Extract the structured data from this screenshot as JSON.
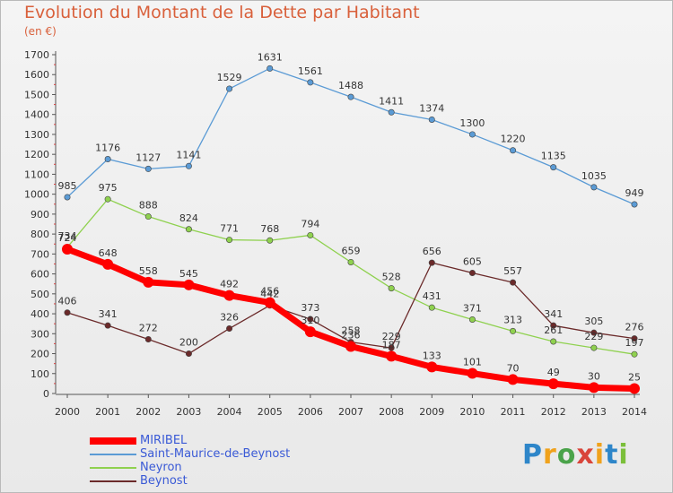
{
  "header": {
    "title": "Evolution du Montant de la Dette par Habitant",
    "unit": "(en €)"
  },
  "chart_data": {
    "type": "line",
    "title": "Evolution du Montant de la Dette par Habitant",
    "ylabel": "(en €)",
    "xlabel": "",
    "x": [
      "2000",
      "2001",
      "2002",
      "2003",
      "2004",
      "2005",
      "2006",
      "2007",
      "2008",
      "2009",
      "2010",
      "2011",
      "2012",
      "2013",
      "2014"
    ],
    "ylim": [
      0,
      1700
    ],
    "yticks": [
      0,
      100,
      200,
      300,
      400,
      500,
      600,
      700,
      800,
      900,
      1000,
      1100,
      1200,
      1300,
      1400,
      1500,
      1600,
      1700
    ],
    "grid": false,
    "legend_position": "bottom-left",
    "series": [
      {
        "name": "MIRIBEL",
        "color": "#ff0000",
        "values": [
          724,
          648,
          558,
          545,
          492,
          456,
          310,
          236,
          187,
          133,
          101,
          70,
          49,
          30,
          25
        ]
      },
      {
        "name": "Saint-Maurice-de-Beynost",
        "color": "#5b9bd5",
        "values": [
          985,
          1176,
          1127,
          1141,
          1529,
          1631,
          1561,
          1488,
          1411,
          1374,
          1300,
          1220,
          1135,
          1035,
          949
        ]
      },
      {
        "name": "Neyron",
        "color": "#8fd14f",
        "values": [
          734,
          975,
          888,
          824,
          771,
          768,
          794,
          659,
          528,
          431,
          371,
          313,
          261,
          229,
          197
        ]
      },
      {
        "name": "Beynost",
        "color": "#6b2a2a",
        "values": [
          406,
          341,
          272,
          200,
          326,
          442,
          373,
          258,
          229,
          656,
          605,
          557,
          341,
          305,
          276
        ]
      }
    ]
  },
  "logo": {
    "letters": [
      "P",
      "r",
      "o",
      "x",
      "i",
      "t",
      "i"
    ],
    "colors": [
      "#2e86c9",
      "#f0a21c",
      "#4aa34a",
      "#d9453a",
      "#f0a21c",
      "#2e86c9",
      "#7bbf3a"
    ]
  }
}
